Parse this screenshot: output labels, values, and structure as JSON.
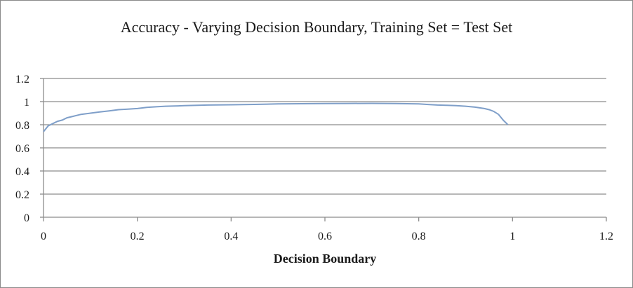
{
  "chart_data": {
    "type": "line",
    "title": "Accuracy - Varying Decision Boundary,  Training Set = Test Set",
    "xlabel": "Decision Boundary",
    "ylabel": "",
    "xlim": [
      0,
      1.2
    ],
    "ylim": [
      0,
      1.2
    ],
    "x_ticks": [
      "0",
      "0.2",
      "0.4",
      "0.6",
      "0.8",
      "1",
      "1.2"
    ],
    "y_ticks": [
      "0",
      "0.2",
      "0.4",
      "0.6",
      "0.8",
      "1",
      "1.2"
    ],
    "grid": "horizontal",
    "legend": "none",
    "line_color": "#7f9fc9",
    "series": [
      {
        "x": [
          0,
          0.01,
          0.02,
          0.03,
          0.04,
          0.05,
          0.06,
          0.08,
          0.1,
          0.12,
          0.14,
          0.16,
          0.18,
          0.2,
          0.22,
          0.24,
          0.26,
          0.28,
          0.3,
          0.35,
          0.4,
          0.45,
          0.5,
          0.55,
          0.6,
          0.65,
          0.7,
          0.75,
          0.8,
          0.82,
          0.84,
          0.86,
          0.88,
          0.9,
          0.92,
          0.94,
          0.95,
          0.96,
          0.97,
          0.98,
          0.99
        ],
        "y": [
          0.74,
          0.79,
          0.81,
          0.83,
          0.84,
          0.86,
          0.87,
          0.89,
          0.9,
          0.91,
          0.92,
          0.93,
          0.935,
          0.94,
          0.95,
          0.955,
          0.96,
          0.962,
          0.965,
          0.97,
          0.973,
          0.976,
          0.98,
          0.982,
          0.983,
          0.984,
          0.985,
          0.983,
          0.98,
          0.975,
          0.97,
          0.968,
          0.965,
          0.96,
          0.952,
          0.94,
          0.93,
          0.915,
          0.89,
          0.84,
          0.8
        ]
      }
    ]
  }
}
